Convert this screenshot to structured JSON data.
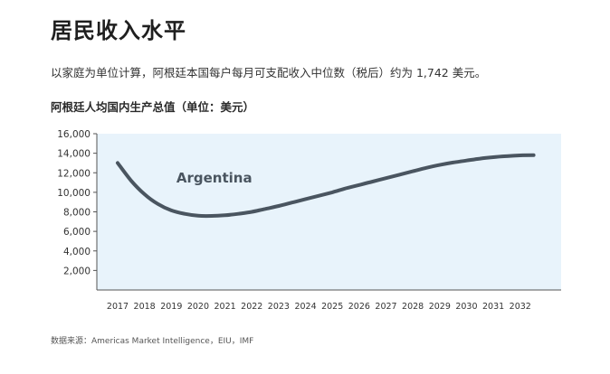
{
  "page": {
    "title": "居民收入水平",
    "description": "以家庭为单位计算，阿根廷本国每户每月可支配收入中位数（税后）约为 1,742 美元。",
    "source": "数据来源：Americas Market Intelligence，EIU，IMF"
  },
  "colors": {
    "plot_bg": "#e8f3fb",
    "line": "#4a5560",
    "axis": "#555555"
  },
  "chart_data": {
    "type": "line",
    "title": "阿根廷人均国内生产总值（单位：美元）",
    "xlabel": "",
    "ylabel": "",
    "categories": [
      "2017",
      "2018",
      "2019",
      "2020",
      "2021",
      "2022",
      "2023",
      "2024",
      "2025",
      "2026",
      "2027",
      "2028",
      "2029",
      "2030",
      "2031",
      "2032"
    ],
    "ylim": [
      0,
      16000
    ],
    "yticks": [
      2000,
      4000,
      6000,
      8000,
      10000,
      12000,
      14000,
      16000
    ],
    "ytick_labels": [
      "2,000",
      "4,000",
      "6,000",
      "8,000",
      "10,000",
      "12,000",
      "14,000",
      "16,000"
    ],
    "grid": false,
    "series": [
      {
        "name": "Argentina",
        "x": [
          2017,
          2017.5,
          2018,
          2018.5,
          2019,
          2019.5,
          2020,
          2020.5,
          2021,
          2021.5,
          2022,
          2022.5,
          2023,
          2023.5,
          2024,
          2024.5,
          2025,
          2025.5,
          2026,
          2026.5,
          2027,
          2027.5,
          2028,
          2028.5,
          2029,
          2029.5,
          2030,
          2030.5,
          2031,
          2031.5,
          2032,
          2032.5
        ],
        "values": [
          13000,
          11200,
          9800,
          8800,
          8150,
          7800,
          7600,
          7580,
          7650,
          7800,
          8000,
          8300,
          8600,
          8950,
          9300,
          9650,
          10000,
          10400,
          10750,
          11100,
          11450,
          11800,
          12150,
          12500,
          12800,
          13050,
          13250,
          13450,
          13600,
          13700,
          13780,
          13800
        ]
      }
    ],
    "annotations": [
      {
        "text": "Argentina",
        "x": 2020.6,
        "y": 11000
      }
    ]
  }
}
